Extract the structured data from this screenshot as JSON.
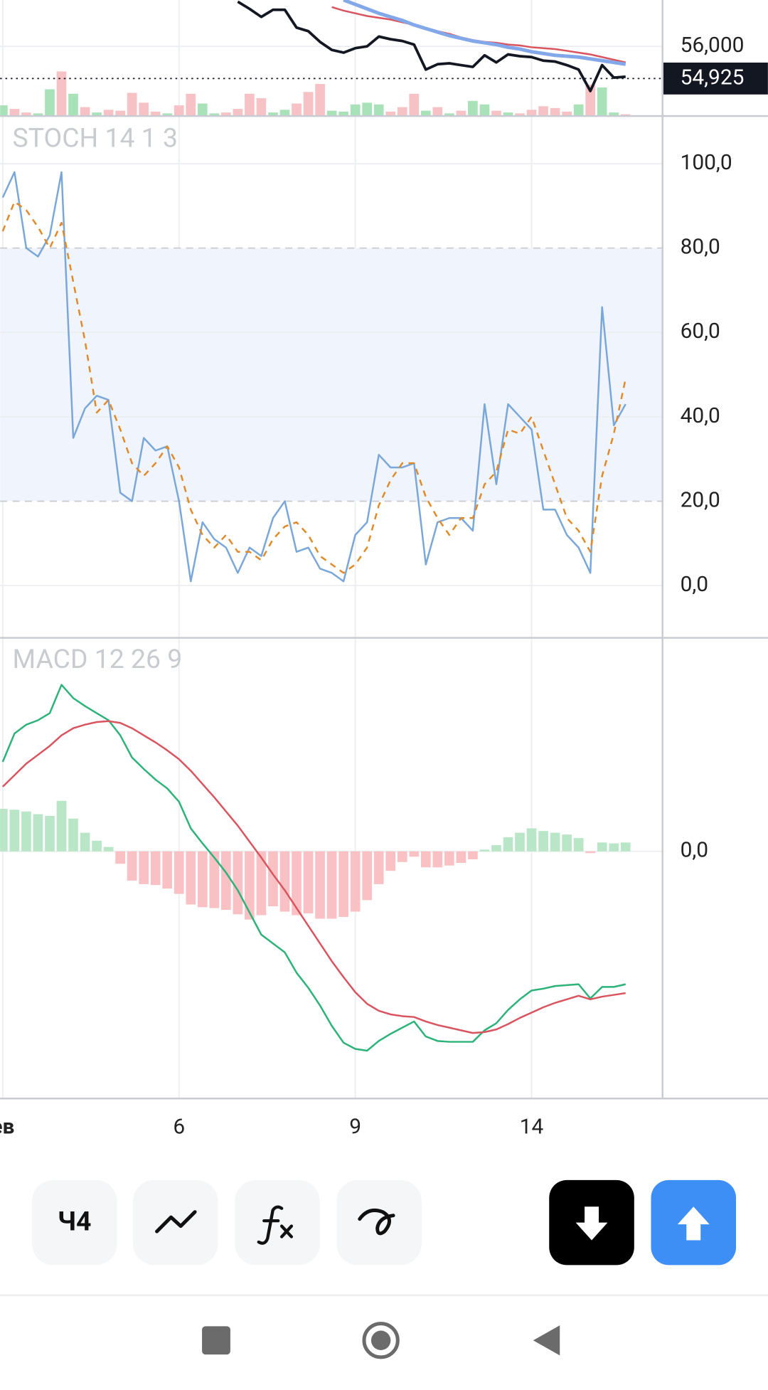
{
  "chart_data": [
    {
      "type": "line",
      "ylim": [
        53670,
        57550
      ],
      "yticks": [
        {
          "value": 56000,
          "label": "56,000"
        }
      ],
      "current_price": {
        "value": 54925,
        "label": "54,925"
      },
      "series": [
        {
          "color": "#131722",
          "values": [
            null,
            null,
            null,
            null,
            null,
            null,
            null,
            null,
            null,
            null,
            null,
            null,
            null,
            null,
            null,
            null,
            null,
            null,
            null,
            null,
            57493,
            57254,
            56985,
            57224,
            57224,
            56627,
            56508,
            56149,
            55881,
            55791,
            55940,
            56000,
            56328,
            56239,
            56179,
            56060,
            55224,
            55403,
            55433,
            55373,
            55313,
            55701,
            55463,
            55731,
            55672,
            55642,
            55522,
            55492,
            55373,
            55224,
            54507,
            55373,
            54955,
            54985
          ]
        },
        {
          "color": "#d9545f",
          "values": [
            null,
            null,
            null,
            null,
            null,
            null,
            null,
            null,
            null,
            null,
            null,
            null,
            null,
            null,
            null,
            null,
            null,
            null,
            null,
            null,
            null,
            null,
            null,
            null,
            null,
            null,
            null,
            null,
            57314,
            57194,
            57105,
            57015,
            56955,
            56896,
            56806,
            56717,
            56597,
            56508,
            56418,
            56299,
            56209,
            56149,
            56119,
            56060,
            56030,
            55970,
            55940,
            55910,
            55851,
            55791,
            55731,
            55642,
            55552,
            55463
          ]
        },
        {
          "color": "#82a8ea",
          "values": [
            null,
            null,
            null,
            null,
            null,
            null,
            null,
            null,
            null,
            null,
            null,
            null,
            null,
            null,
            null,
            null,
            null,
            null,
            null,
            null,
            null,
            null,
            null,
            null,
            null,
            null,
            null,
            null,
            null,
            57553,
            57403,
            57254,
            57105,
            56985,
            56866,
            56717,
            56597,
            56478,
            56358,
            56269,
            56179,
            56119,
            56060,
            55970,
            55910,
            55821,
            55761,
            55701,
            55672,
            55642,
            55582,
            55522,
            55463,
            55403
          ]
        }
      ],
      "volume": {
        "ylim": [
          0,
          130
        ],
        "values": [
          12,
          8,
          4,
          3,
          30,
          50,
          25,
          10,
          4,
          7,
          6,
          26,
          15,
          5,
          3,
          12,
          25,
          14,
          3,
          4,
          8,
          25,
          20,
          4,
          7,
          14,
          27,
          36,
          6,
          5,
          13,
          15,
          13,
          5,
          10,
          25,
          6,
          10,
          3,
          6,
          17,
          13,
          6,
          4,
          3,
          7,
          11,
          9,
          5,
          13,
          35,
          32,
          4,
          2
        ],
        "colors": [
          "#a9e2b9",
          "#f7c2c5",
          "#f7c2c5",
          "#a9e2b9",
          "#a9e2b9",
          "#f7c2c5",
          "#a9e2b9",
          "#f7c2c5",
          "#a9e2b9",
          "#f7c2c5",
          "#f7c2c5",
          "#f7c2c5",
          "#f7c2c5",
          "#f7c2c5",
          "#a9e2b9",
          "#f7c2c5",
          "#f7c2c5",
          "#a9e2b9",
          "#a9e2b9",
          "#f7c2c5",
          "#f7c2c5",
          "#f7c2c5",
          "#f7c2c5",
          "#a9e2b9",
          "#a9e2b9",
          "#f7c2c5",
          "#f7c2c5",
          "#f7c2c5",
          "#a9e2b9",
          "#a9e2b9",
          "#a9e2b9",
          "#a9e2b9",
          "#a9e2b9",
          "#f7c2c5",
          "#f7c2c5",
          "#f7c2c5",
          "#a9e2b9",
          "#f7c2c5",
          "#a9e2b9",
          "#f7c2c5",
          "#a9e2b9",
          "#a9e2b9",
          "#f7c2c5",
          "#a9e2b9",
          "#f7c2c5",
          "#f7c2c5",
          "#f7c2c5",
          "#f7c2c5",
          "#f7c2c5",
          "#a9e2b9",
          "#f7c2c5",
          "#a9e2b9",
          "#a9e2b9",
          "#f7c2c5"
        ]
      }
    },
    {
      "type": "line",
      "title": "STOCH 14 1 3",
      "ylim": [
        -12.4,
        111.3
      ],
      "yticks": [
        {
          "value": 0,
          "label": "0,0"
        },
        {
          "value": 20,
          "label": "20,0"
        },
        {
          "value": 40,
          "label": "40,0"
        },
        {
          "value": 60,
          "label": "60,0"
        },
        {
          "value": 80,
          "label": "80,0"
        },
        {
          "value": 100,
          "label": "100,0"
        }
      ],
      "band": [
        20,
        80
      ],
      "series": [
        {
          "color": "#7aa7d9",
          "values": [
            92,
            98,
            80,
            78,
            83,
            98,
            35,
            42,
            45,
            44,
            22,
            20,
            35,
            32,
            33,
            20,
            1,
            15,
            11,
            9,
            3,
            9,
            7,
            16,
            20,
            8,
            9,
            4,
            3,
            1,
            12,
            15,
            31,
            28,
            28,
            29,
            5,
            15,
            16,
            16,
            13,
            43,
            24,
            43,
            40,
            37,
            18,
            18,
            12,
            9,
            3,
            66,
            38,
            43
          ]
        },
        {
          "color": "#e08a2a",
          "dashed": true,
          "values": [
            84,
            91,
            89,
            85,
            80,
            86,
            72,
            58,
            41,
            44,
            37,
            29,
            26,
            29,
            33,
            28,
            18,
            12,
            9,
            12,
            8,
            8,
            6,
            11,
            14,
            15,
            12,
            7,
            5,
            3,
            5,
            9,
            19,
            25,
            29,
            29,
            21,
            16,
            12,
            16,
            16,
            24,
            27,
            37,
            36,
            40,
            32,
            24,
            16,
            13,
            8,
            26,
            36,
            49
          ]
        }
      ]
    },
    {
      "type": "line",
      "title": "MACD 12 26 9",
      "ylim": [
        -279,
        241
      ],
      "yticks": [
        {
          "value": 0,
          "label": "0,0"
        }
      ],
      "categories": [
        "ев",
        null,
        null,
        null,
        null,
        null,
        null,
        null,
        null,
        null,
        null,
        null,
        null,
        null,
        null,
        "6",
        null,
        null,
        null,
        null,
        null,
        null,
        null,
        null,
        null,
        null,
        null,
        null,
        null,
        null,
        "9",
        null,
        null,
        null,
        null,
        null,
        null,
        null,
        null,
        null,
        null,
        null,
        null,
        null,
        null,
        "14",
        null,
        null,
        null,
        null,
        null,
        null,
        null,
        null
      ],
      "histogram": {
        "colors": [
          "#b9e6c7",
          "#f9c1c4"
        ],
        "values": [
          48,
          47,
          45,
          42,
          40,
          57,
          37,
          21,
          12,
          5,
          -14,
          -33,
          -37,
          -38,
          -42,
          -48,
          -60,
          -63,
          -64,
          -66,
          -71,
          -77,
          -72,
          -62,
          -68,
          -72,
          -70,
          -76,
          -76,
          -74,
          -68,
          -55,
          -37,
          -22,
          -12,
          -6,
          -18,
          -18,
          -16,
          -13,
          -9,
          2,
          7,
          16,
          21,
          26,
          23,
          21,
          19,
          15,
          -2,
          10,
          9,
          10
        ]
      },
      "series": [
        {
          "color": "#2db37a",
          "values": [
            101,
            133,
            143,
            148,
            156,
            188,
            173,
            164,
            156,
            148,
            131,
            106,
            93,
            81,
            71,
            56,
            26,
            9,
            -7,
            -24,
            -44,
            -69,
            -94,
            -104,
            -114,
            -137,
            -154,
            -174,
            -197,
            -216,
            -223,
            -225,
            -214,
            -206,
            -199,
            -192,
            -209,
            -214,
            -215,
            -215,
            -215,
            -202,
            -194,
            -179,
            -167,
            -157,
            -155,
            -152,
            -151,
            -150,
            -166,
            -153,
            -153,
            -150
          ]
        },
        {
          "color": "#d9545f",
          "values": [
            73,
            86,
            99,
            109,
            119,
            131,
            139,
            143,
            146,
            147,
            145,
            139,
            131,
            123,
            114,
            104,
            91,
            76,
            61,
            45,
            29,
            11,
            -7,
            -26,
            -44,
            -64,
            -84,
            -104,
            -124,
            -142,
            -159,
            -172,
            -180,
            -184,
            -186,
            -187,
            -192,
            -196,
            -199,
            -202,
            -205,
            -204,
            -201,
            -195,
            -188,
            -182,
            -176,
            -171,
            -167,
            -163,
            -167,
            -164,
            -162,
            -160
          ]
        }
      ]
    }
  ],
  "toolbar": {
    "interval": "Ч4"
  }
}
